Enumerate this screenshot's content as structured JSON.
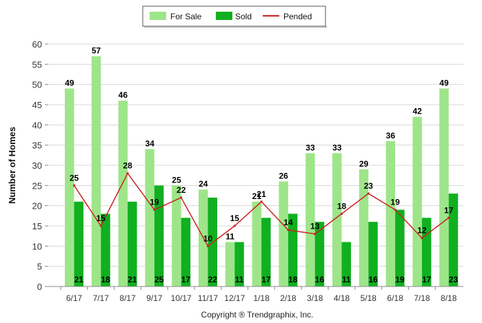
{
  "chart_data": {
    "type": "bar",
    "categories": [
      "6/17",
      "7/17",
      "8/17",
      "9/17",
      "10/17",
      "11/17",
      "12/17",
      "1/18",
      "2/18",
      "3/18",
      "4/18",
      "5/18",
      "6/18",
      "7/18",
      "8/18"
    ],
    "series": [
      {
        "name": "For Sale",
        "type": "bar",
        "color": "#9ee58a",
        "values": [
          49,
          57,
          46,
          34,
          25,
          24,
          11,
          21,
          26,
          33,
          33,
          29,
          36,
          42,
          49
        ]
      },
      {
        "name": "Sold",
        "type": "bar",
        "color": "#10b020",
        "values": [
          21,
          18,
          21,
          25,
          17,
          22,
          11,
          17,
          18,
          16,
          11,
          16,
          19,
          17,
          23
        ]
      },
      {
        "name": "Pended",
        "type": "line",
        "color": "#cc2222",
        "values": [
          25,
          15,
          28,
          19,
          22,
          10,
          15,
          21,
          14,
          13,
          18,
          23,
          19,
          12,
          17
        ]
      }
    ],
    "ylabel": "Number of Homes",
    "xlabel": "",
    "ylim": [
      0,
      60
    ],
    "yticks": [
      0,
      5,
      10,
      15,
      20,
      25,
      30,
      35,
      40,
      45,
      50,
      55,
      60
    ],
    "grid": true,
    "legend": "top-center"
  },
  "footer": {
    "copyright": "Copyright ® Trendgraphix, Inc."
  }
}
